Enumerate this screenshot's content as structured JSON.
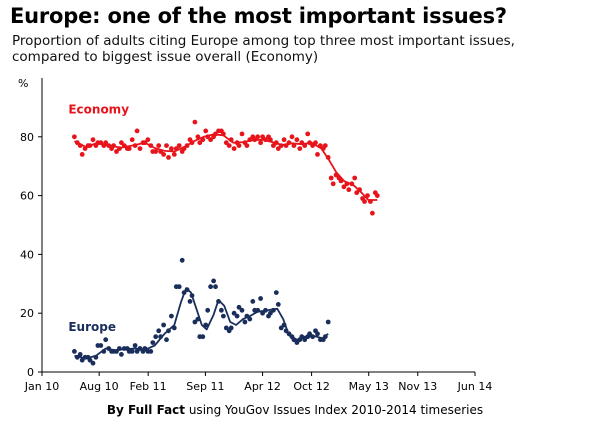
{
  "title": "Europe: one of the most important issues?",
  "subtitle": "Proportion of adults citing Europe among top three most important issues, compared to biggest issue overall (Economy)",
  "footer": {
    "bold": "By Full Fact",
    "text": " using YouGov Issues Index 2010-2014 timeseries"
  },
  "colors": {
    "economy": "#e8141b",
    "europe": "#1a2e5c",
    "axis": "#000000"
  },
  "chart_data": {
    "type": "scatter",
    "ylabel": "%",
    "ylim": [
      0,
      100
    ],
    "yticks": [
      0,
      20,
      40,
      60,
      80
    ],
    "xlim": [
      2010.0,
      2014.0
    ],
    "xticks": [
      {
        "label": "Jan 10",
        "x": 2010.0
      },
      {
        "label": "Aug 10",
        "x": 2010.583
      },
      {
        "label": "Feb 11",
        "x": 2011.083
      },
      {
        "label": "Sep 11",
        "x": 2011.667
      },
      {
        "label": "Apr 12",
        "x": 2012.25
      },
      {
        "label": "Oct 12",
        "x": 2012.75
      },
      {
        "label": "May 13",
        "x": 2013.333
      },
      {
        "label": "Nov 13",
        "x": 2013.833
      },
      {
        "label": "Jun 14",
        "x": 2014.417
      }
    ],
    "series": [
      {
        "name": "Economy",
        "color": "#e8141b",
        "points": [
          [
            2010.33,
            80
          ],
          [
            2010.36,
            78
          ],
          [
            2010.39,
            77
          ],
          [
            2010.41,
            74
          ],
          [
            2010.44,
            76
          ],
          [
            2010.47,
            77
          ],
          [
            2010.49,
            77
          ],
          [
            2010.52,
            79
          ],
          [
            2010.55,
            77
          ],
          [
            2010.57,
            78
          ],
          [
            2010.6,
            78
          ],
          [
            2010.63,
            77
          ],
          [
            2010.65,
            78
          ],
          [
            2010.68,
            77
          ],
          [
            2010.71,
            76
          ],
          [
            2010.73,
            77
          ],
          [
            2010.76,
            75
          ],
          [
            2010.79,
            76
          ],
          [
            2010.81,
            78
          ],
          [
            2010.84,
            77
          ],
          [
            2010.87,
            76
          ],
          [
            2010.89,
            76
          ],
          [
            2010.92,
            79
          ],
          [
            2010.95,
            77
          ],
          [
            2010.97,
            82
          ],
          [
            2011.0,
            76
          ],
          [
            2011.03,
            78
          ],
          [
            2011.05,
            78
          ],
          [
            2011.08,
            79
          ],
          [
            2011.11,
            77
          ],
          [
            2011.13,
            75
          ],
          [
            2011.16,
            75
          ],
          [
            2011.19,
            77
          ],
          [
            2011.21,
            75
          ],
          [
            2011.24,
            74
          ],
          [
            2011.27,
            77
          ],
          [
            2011.29,
            73
          ],
          [
            2011.32,
            76
          ],
          [
            2011.35,
            74
          ],
          [
            2011.37,
            76
          ],
          [
            2011.4,
            77
          ],
          [
            2011.43,
            75
          ],
          [
            2011.45,
            76
          ],
          [
            2011.48,
            77
          ],
          [
            2011.51,
            79
          ],
          [
            2011.53,
            78
          ],
          [
            2011.56,
            85
          ],
          [
            2011.59,
            80
          ],
          [
            2011.61,
            78
          ],
          [
            2011.64,
            79
          ],
          [
            2011.67,
            82
          ],
          [
            2011.69,
            80
          ],
          [
            2011.72,
            79
          ],
          [
            2011.75,
            80
          ],
          [
            2011.77,
            81
          ],
          [
            2011.8,
            82
          ],
          [
            2011.83,
            82
          ],
          [
            2011.85,
            81
          ],
          [
            2011.88,
            78
          ],
          [
            2011.91,
            77
          ],
          [
            2011.93,
            79
          ],
          [
            2011.96,
            76
          ],
          [
            2011.99,
            78
          ],
          [
            2012.01,
            77
          ],
          [
            2012.04,
            81
          ],
          [
            2012.07,
            78
          ],
          [
            2012.09,
            77
          ],
          [
            2012.12,
            79
          ],
          [
            2012.15,
            80
          ],
          [
            2012.17,
            79
          ],
          [
            2012.2,
            80
          ],
          [
            2012.23,
            78
          ],
          [
            2012.25,
            80
          ],
          [
            2012.28,
            79
          ],
          [
            2012.31,
            80
          ],
          [
            2012.33,
            79
          ],
          [
            2012.36,
            77
          ],
          [
            2012.39,
            78
          ],
          [
            2012.41,
            76
          ],
          [
            2012.44,
            77
          ],
          [
            2012.47,
            79
          ],
          [
            2012.49,
            77
          ],
          [
            2012.52,
            78
          ],
          [
            2012.55,
            80
          ],
          [
            2012.57,
            77
          ],
          [
            2012.6,
            79
          ],
          [
            2012.63,
            76
          ],
          [
            2012.65,
            78
          ],
          [
            2012.68,
            77
          ],
          [
            2012.71,
            81
          ],
          [
            2012.73,
            78
          ],
          [
            2012.76,
            77
          ],
          [
            2012.79,
            78
          ],
          [
            2012.81,
            74
          ],
          [
            2012.84,
            77
          ],
          [
            2012.87,
            76
          ],
          [
            2012.89,
            77
          ],
          [
            2012.92,
            73
          ],
          [
            2012.95,
            66
          ],
          [
            2012.97,
            64
          ],
          [
            2013.0,
            67
          ],
          [
            2013.03,
            66
          ],
          [
            2013.05,
            65
          ],
          [
            2013.08,
            63
          ],
          [
            2013.11,
            64
          ],
          [
            2013.13,
            62
          ],
          [
            2013.16,
            64
          ],
          [
            2013.19,
            66
          ],
          [
            2013.21,
            61
          ],
          [
            2013.24,
            62
          ],
          [
            2013.27,
            59
          ],
          [
            2013.29,
            58
          ],
          [
            2013.32,
            60
          ],
          [
            2013.35,
            58
          ],
          [
            2013.37,
            54
          ],
          [
            2013.4,
            61
          ],
          [
            2013.42,
            60
          ]
        ],
        "trend": [
          [
            2010.33,
            78.5
          ],
          [
            2010.45,
            76.5
          ],
          [
            2010.55,
            77.8
          ],
          [
            2010.7,
            77.0
          ],
          [
            2010.8,
            76.3
          ],
          [
            2010.95,
            77.2
          ],
          [
            2011.05,
            78.0
          ],
          [
            2011.15,
            76.2
          ],
          [
            2011.25,
            75.2
          ],
          [
            2011.35,
            75.0
          ],
          [
            2011.45,
            76.5
          ],
          [
            2011.55,
            78.5
          ],
          [
            2011.65,
            80.0
          ],
          [
            2011.75,
            80.8
          ],
          [
            2011.85,
            80.5
          ],
          [
            2011.95,
            78.0
          ],
          [
            2012.05,
            78.2
          ],
          [
            2012.15,
            78.8
          ],
          [
            2012.25,
            79.0
          ],
          [
            2012.35,
            78.2
          ],
          [
            2012.45,
            77.2
          ],
          [
            2012.55,
            77.8
          ],
          [
            2012.65,
            77.5
          ],
          [
            2012.75,
            78.0
          ],
          [
            2012.85,
            76.0
          ],
          [
            2012.93,
            72.0
          ],
          [
            2013.0,
            68.0
          ],
          [
            2013.08,
            65.0
          ],
          [
            2013.18,
            63.5
          ],
          [
            2013.26,
            61.0
          ],
          [
            2013.33,
            58.5
          ],
          [
            2013.42,
            58.5
          ]
        ]
      },
      {
        "name": "Europe",
        "color": "#1a2e5c",
        "points": [
          [
            2010.33,
            7
          ],
          [
            2010.36,
            5
          ],
          [
            2010.39,
            6
          ],
          [
            2010.41,
            4
          ],
          [
            2010.44,
            5
          ],
          [
            2010.47,
            5
          ],
          [
            2010.49,
            4
          ],
          [
            2010.52,
            3
          ],
          [
            2010.55,
            5
          ],
          [
            2010.57,
            9
          ],
          [
            2010.6,
            9
          ],
          [
            2010.63,
            7
          ],
          [
            2010.65,
            11
          ],
          [
            2010.68,
            8
          ],
          [
            2010.71,
            7
          ],
          [
            2010.73,
            7
          ],
          [
            2010.76,
            7
          ],
          [
            2010.79,
            8
          ],
          [
            2010.81,
            6
          ],
          [
            2010.84,
            8
          ],
          [
            2010.87,
            8
          ],
          [
            2010.89,
            7
          ],
          [
            2010.92,
            7
          ],
          [
            2010.95,
            9
          ],
          [
            2010.97,
            7
          ],
          [
            2011.0,
            8
          ],
          [
            2011.03,
            7
          ],
          [
            2011.05,
            8
          ],
          [
            2011.08,
            7
          ],
          [
            2011.11,
            7
          ],
          [
            2011.13,
            10
          ],
          [
            2011.16,
            12
          ],
          [
            2011.19,
            14
          ],
          [
            2011.21,
            12
          ],
          [
            2011.24,
            16
          ],
          [
            2011.27,
            11
          ],
          [
            2011.29,
            14
          ],
          [
            2011.32,
            19
          ],
          [
            2011.35,
            15
          ],
          [
            2011.37,
            29
          ],
          [
            2011.4,
            29
          ],
          [
            2011.43,
            38
          ],
          [
            2011.45,
            27
          ],
          [
            2011.48,
            28
          ],
          [
            2011.51,
            24
          ],
          [
            2011.53,
            26
          ],
          [
            2011.56,
            17
          ],
          [
            2011.59,
            18
          ],
          [
            2011.61,
            12
          ],
          [
            2011.64,
            12
          ],
          [
            2011.67,
            16
          ],
          [
            2011.69,
            21
          ],
          [
            2011.72,
            29
          ],
          [
            2011.75,
            31
          ],
          [
            2011.77,
            29
          ],
          [
            2011.8,
            24
          ],
          [
            2011.83,
            21
          ],
          [
            2011.85,
            19
          ],
          [
            2011.88,
            15
          ],
          [
            2011.91,
            14
          ],
          [
            2011.93,
            15
          ],
          [
            2011.96,
            20
          ],
          [
            2011.99,
            19
          ],
          [
            2012.01,
            22
          ],
          [
            2012.04,
            21
          ],
          [
            2012.07,
            17
          ],
          [
            2012.09,
            19
          ],
          [
            2012.12,
            18
          ],
          [
            2012.15,
            24
          ],
          [
            2012.17,
            21
          ],
          [
            2012.2,
            21
          ],
          [
            2012.23,
            25
          ],
          [
            2012.25,
            20
          ],
          [
            2012.28,
            21
          ],
          [
            2012.31,
            19
          ],
          [
            2012.33,
            20
          ],
          [
            2012.36,
            21
          ],
          [
            2012.39,
            27
          ],
          [
            2012.41,
            23
          ],
          [
            2012.44,
            15
          ],
          [
            2012.47,
            16
          ],
          [
            2012.49,
            14
          ],
          [
            2012.52,
            13
          ],
          [
            2012.55,
            12
          ],
          [
            2012.57,
            11
          ],
          [
            2012.6,
            10
          ],
          [
            2012.63,
            11
          ],
          [
            2012.65,
            12
          ],
          [
            2012.68,
            11
          ],
          [
            2012.71,
            12
          ],
          [
            2012.73,
            13
          ],
          [
            2012.76,
            12
          ],
          [
            2012.79,
            14
          ],
          [
            2012.81,
            13
          ],
          [
            2012.84,
            11
          ],
          [
            2012.87,
            11
          ],
          [
            2012.89,
            12
          ],
          [
            2012.92,
            17
          ]
        ],
        "trend": [
          [
            2010.33,
            5.5
          ],
          [
            2010.45,
            4.6
          ],
          [
            2010.55,
            5.5
          ],
          [
            2010.65,
            8.0
          ],
          [
            2010.75,
            7.4
          ],
          [
            2010.85,
            7.8
          ],
          [
            2010.95,
            8.0
          ],
          [
            2011.05,
            7.5
          ],
          [
            2011.15,
            9.0
          ],
          [
            2011.25,
            13.0
          ],
          [
            2011.35,
            16.0
          ],
          [
            2011.42,
            24.0
          ],
          [
            2011.47,
            28.5
          ],
          [
            2011.52,
            27.0
          ],
          [
            2011.57,
            22.0
          ],
          [
            2011.63,
            16.0
          ],
          [
            2011.68,
            14.5
          ],
          [
            2011.75,
            19.5
          ],
          [
            2011.8,
            24.5
          ],
          [
            2011.86,
            22.5
          ],
          [
            2011.92,
            17.0
          ],
          [
            2011.98,
            16.0
          ],
          [
            2012.05,
            18.0
          ],
          [
            2012.12,
            19.0
          ],
          [
            2012.2,
            20.5
          ],
          [
            2012.28,
            20.8
          ],
          [
            2012.35,
            21.3
          ],
          [
            2012.4,
            21.5
          ],
          [
            2012.46,
            18.0
          ],
          [
            2012.52,
            12.5
          ],
          [
            2012.6,
            11.0
          ],
          [
            2012.68,
            12.0
          ],
          [
            2012.78,
            12.2
          ],
          [
            2012.86,
            11.5
          ],
          [
            2012.92,
            13.0
          ]
        ]
      }
    ],
    "annotations": [
      {
        "text": "Economy",
        "color": "#e8141b",
        "x": 2010.33,
        "y": 88
      },
      {
        "text": "Europe",
        "color": "#1a2e5c",
        "x": 2010.33,
        "y": 14
      }
    ],
    "grid": false
  }
}
